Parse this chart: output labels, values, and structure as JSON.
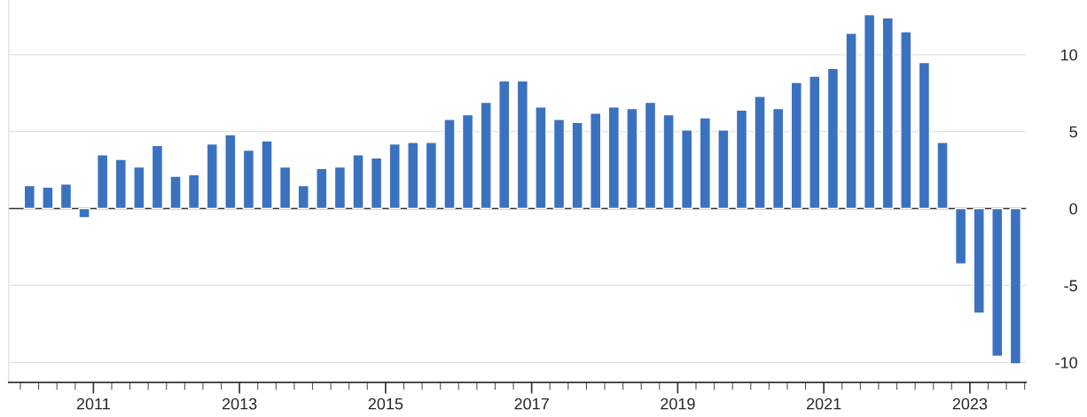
{
  "chart_data": {
    "type": "bar",
    "x": [
      2010.125,
      2010.375,
      2010.625,
      2010.875,
      2011.125,
      2011.375,
      2011.625,
      2011.875,
      2012.125,
      2012.375,
      2012.625,
      2012.875,
      2013.125,
      2013.375,
      2013.625,
      2013.875,
      2014.125,
      2014.375,
      2014.625,
      2014.875,
      2015.125,
      2015.375,
      2015.625,
      2015.875,
      2016.125,
      2016.375,
      2016.625,
      2016.875,
      2017.125,
      2017.375,
      2017.625,
      2017.875,
      2018.125,
      2018.375,
      2018.625,
      2018.875,
      2019.125,
      2019.375,
      2019.625,
      2019.875,
      2020.125,
      2020.375,
      2020.625,
      2020.875,
      2021.125,
      2021.375,
      2021.625,
      2021.875,
      2022.125,
      2022.375,
      2022.625,
      2022.875,
      2023.125,
      2023.375,
      2023.625
    ],
    "values": [
      1.5,
      1.4,
      1.6,
      -0.6,
      3.5,
      3.2,
      2.7,
      4.1,
      2.1,
      2.2,
      4.2,
      4.8,
      3.8,
      4.4,
      2.7,
      1.5,
      2.6,
      2.7,
      3.5,
      3.3,
      4.2,
      4.3,
      4.3,
      5.8,
      6.1,
      6.9,
      8.3,
      8.3,
      6.6,
      5.8,
      5.6,
      6.2,
      6.6,
      6.5,
      6.9,
      6.1,
      5.1,
      5.9,
      5.1,
      6.4,
      7.3,
      6.5,
      8.2,
      8.6,
      9.1,
      11.4,
      12.6,
      12.4,
      11.5,
      9.5,
      4.3,
      -3.6,
      -6.8,
      -9.6,
      -10.1
    ],
    "color": "#3a72c0",
    "xlim": [
      2009.84,
      2023.77
    ],
    "xticks": [
      {
        "value": 2010,
        "label": null
      },
      {
        "value": 2010.25,
        "label": null
      },
      {
        "value": 2010.5,
        "label": null
      },
      {
        "value": 2010.75,
        "label": null
      },
      {
        "value": 2011,
        "label": "2011"
      },
      {
        "value": 2011.25,
        "label": null
      },
      {
        "value": 2011.5,
        "label": null
      },
      {
        "value": 2011.75,
        "label": null
      },
      {
        "value": 2012,
        "label": null
      },
      {
        "value": 2012.25,
        "label": null
      },
      {
        "value": 2012.5,
        "label": null
      },
      {
        "value": 2012.75,
        "label": null
      },
      {
        "value": 2013,
        "label": "2013"
      },
      {
        "value": 2013.25,
        "label": null
      },
      {
        "value": 2013.5,
        "label": null
      },
      {
        "value": 2013.75,
        "label": null
      },
      {
        "value": 2014,
        "label": null
      },
      {
        "value": 2014.25,
        "label": null
      },
      {
        "value": 2014.5,
        "label": null
      },
      {
        "value": 2014.75,
        "label": null
      },
      {
        "value": 2015,
        "label": "2015"
      },
      {
        "value": 2015.25,
        "label": null
      },
      {
        "value": 2015.5,
        "label": null
      },
      {
        "value": 2015.75,
        "label": null
      },
      {
        "value": 2016,
        "label": null
      },
      {
        "value": 2016.25,
        "label": null
      },
      {
        "value": 2016.5,
        "label": null
      },
      {
        "value": 2016.75,
        "label": null
      },
      {
        "value": 2017,
        "label": "2017"
      },
      {
        "value": 2017.25,
        "label": null
      },
      {
        "value": 2017.5,
        "label": null
      },
      {
        "value": 2017.75,
        "label": null
      },
      {
        "value": 2018,
        "label": null
      },
      {
        "value": 2018.25,
        "label": null
      },
      {
        "value": 2018.5,
        "label": null
      },
      {
        "value": 2018.75,
        "label": null
      },
      {
        "value": 2019,
        "label": "2019"
      },
      {
        "value": 2019.25,
        "label": null
      },
      {
        "value": 2019.5,
        "label": null
      },
      {
        "value": 2019.75,
        "label": null
      },
      {
        "value": 2020,
        "label": null
      },
      {
        "value": 2020.25,
        "label": null
      },
      {
        "value": 2020.5,
        "label": null
      },
      {
        "value": 2020.75,
        "label": null
      },
      {
        "value": 2021,
        "label": "2021"
      },
      {
        "value": 2021.25,
        "label": null
      },
      {
        "value": 2021.5,
        "label": null
      },
      {
        "value": 2021.75,
        "label": null
      },
      {
        "value": 2022,
        "label": null
      },
      {
        "value": 2022.25,
        "label": null
      },
      {
        "value": 2022.5,
        "label": null
      },
      {
        "value": 2022.75,
        "label": null
      },
      {
        "value": 2023,
        "label": "2023"
      },
      {
        "value": 2023.25,
        "label": null
      },
      {
        "value": 2023.5,
        "label": null
      },
      {
        "value": 2023.75,
        "label": null
      }
    ],
    "ylim": [
      -11.3,
      13.5
    ],
    "yticks": [
      -10,
      -5,
      0,
      5,
      10
    ],
    "grid": "y",
    "ref_lines": [
      {
        "axis": "y",
        "value": 0,
        "color": "#333333"
      }
    ]
  }
}
